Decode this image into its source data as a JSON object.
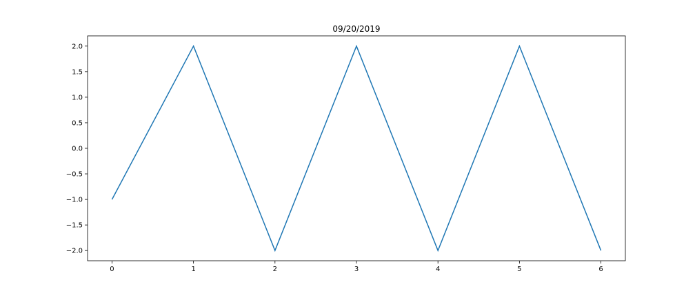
{
  "chart_data": {
    "type": "line",
    "title": "09/20/2019",
    "xlabel": "",
    "ylabel": "",
    "xlim": [
      -0.3,
      6.3
    ],
    "ylim": [
      -2.2,
      2.2
    ],
    "x_ticks": [
      0,
      1,
      2,
      3,
      4,
      5,
      6
    ],
    "x_tick_labels": [
      "0",
      "1",
      "2",
      "3",
      "4",
      "5",
      "6"
    ],
    "y_ticks": [
      2.0,
      1.5,
      1.0,
      0.5,
      0.0,
      -0.5,
      -1.0,
      -1.5,
      -2.0
    ],
    "y_tick_labels": [
      "2.0",
      "1.5",
      "1.0",
      "0.5",
      "0.0",
      "−0.5",
      "−1.0",
      "−1.5",
      "−2.0"
    ],
    "grid": false,
    "legend": "none",
    "series": [
      {
        "color": "#1f77b4",
        "x": [
          0,
          1,
          2,
          3,
          4,
          5,
          6
        ],
        "y": [
          -1,
          2,
          -2,
          2,
          -2,
          2,
          -2
        ]
      }
    ]
  }
}
